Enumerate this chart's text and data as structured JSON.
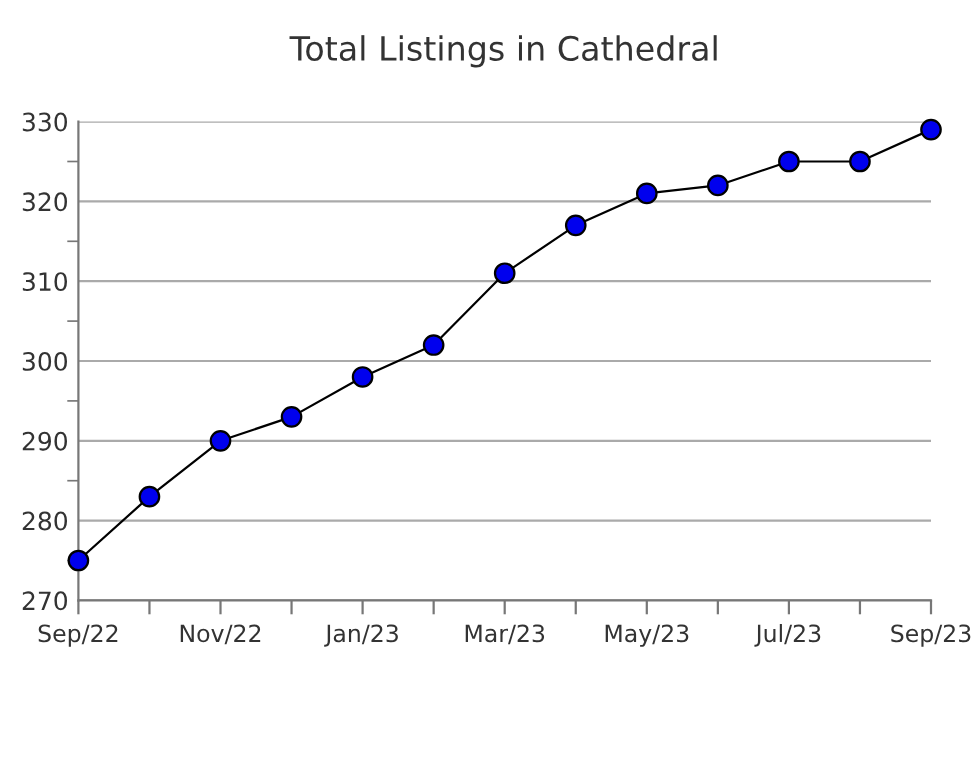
{
  "chart_data": {
    "type": "line",
    "title": "Total Listings in Cathedral",
    "categories": [
      "Sep/22",
      null,
      "Nov/22",
      null,
      "Jan/23",
      null,
      "Mar/23",
      null,
      "May/23",
      null,
      "Jul/23",
      null,
      "Sep/23"
    ],
    "series": [
      {
        "color": "#0000ee",
        "values": [
          275,
          283,
          290,
          293,
          298,
          302,
          311,
          317,
          321,
          322,
          325,
          325,
          329
        ]
      }
    ],
    "ylim": [
      270,
      330
    ],
    "yticks": [
      270,
      {
        "value": 275,
        "label": null
      },
      280,
      {
        "value": 285,
        "label": null
      },
      290,
      {
        "value": 295,
        "label": null
      },
      300,
      {
        "value": 305,
        "label": null
      },
      310,
      {
        "value": 315,
        "label": null
      },
      320,
      {
        "value": 325,
        "label": null
      },
      330
    ],
    "grid": "y",
    "marker": "circle",
    "line_style": "solid"
  }
}
